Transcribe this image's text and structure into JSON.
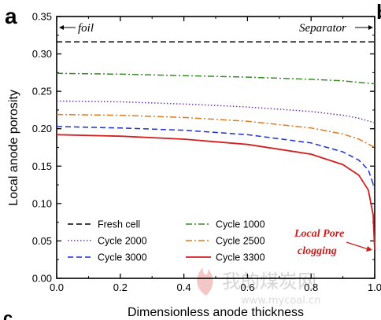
{
  "panel_labels": [
    "a",
    "b",
    "c"
  ],
  "watermark": {
    "text_cn": "我的煤炭网",
    "url": "www.mycoal.cn"
  },
  "chart_data": {
    "type": "line",
    "title": "",
    "xlabel": "Dimensionless anode thickness",
    "ylabel": "Local anode porosity",
    "xlim": [
      0.0,
      1.0
    ],
    "ylim": [
      0.0,
      0.35
    ],
    "x_ticks": [
      "0.0",
      "0.2",
      "0.4",
      "0.6",
      "0.8",
      "1.0"
    ],
    "y_ticks": [
      "0.00",
      "0.05",
      "0.10",
      "0.15",
      "0.20",
      "0.25",
      "0.30",
      "0.35"
    ],
    "grid": false,
    "legend_position": "bottom-left",
    "series": [
      {
        "name": "Fresh cell",
        "color": "#000000",
        "dash": "dashed",
        "x": [
          0.0,
          0.2,
          0.4,
          0.6,
          0.8,
          1.0
        ],
        "y": [
          0.316,
          0.316,
          0.316,
          0.316,
          0.316,
          0.316
        ]
      },
      {
        "name": "Cycle 1000",
        "color": "#3a8a2a",
        "dash": "dashdot",
        "x": [
          0.0,
          0.2,
          0.4,
          0.6,
          0.8,
          0.9,
          1.0
        ],
        "y": [
          0.274,
          0.273,
          0.271,
          0.269,
          0.266,
          0.264,
          0.26
        ]
      },
      {
        "name": "Cycle 2000",
        "color": "#6a3a9a",
        "dash": "dotted",
        "x": [
          0.0,
          0.2,
          0.4,
          0.6,
          0.8,
          0.9,
          0.95,
          1.0
        ],
        "y": [
          0.237,
          0.236,
          0.233,
          0.229,
          0.223,
          0.218,
          0.214,
          0.208
        ]
      },
      {
        "name": "Cycle 2500",
        "color": "#e07a1f",
        "dash": "dashdot",
        "x": [
          0.0,
          0.2,
          0.4,
          0.6,
          0.8,
          0.9,
          0.95,
          1.0
        ],
        "y": [
          0.219,
          0.218,
          0.215,
          0.21,
          0.201,
          0.193,
          0.186,
          0.175
        ]
      },
      {
        "name": "Cycle 3000",
        "color": "#1f2fd0",
        "dash": "dashed",
        "x": [
          0.0,
          0.2,
          0.4,
          0.6,
          0.8,
          0.9,
          0.95,
          0.98,
          1.0
        ],
        "y": [
          0.203,
          0.201,
          0.198,
          0.192,
          0.181,
          0.169,
          0.158,
          0.145,
          0.12
        ]
      },
      {
        "name": "Cycle 3300",
        "color": "#d21f1f",
        "dash": "solid",
        "x": [
          0.0,
          0.2,
          0.4,
          0.6,
          0.8,
          0.9,
          0.95,
          0.98,
          0.995,
          1.0
        ],
        "y": [
          0.192,
          0.19,
          0.186,
          0.179,
          0.166,
          0.152,
          0.138,
          0.118,
          0.085,
          0.038
        ]
      }
    ],
    "annotations": {
      "foil": "foil",
      "separator": "Separator",
      "pore_line1": "Local Pore",
      "pore_line2": "clogging"
    }
  }
}
